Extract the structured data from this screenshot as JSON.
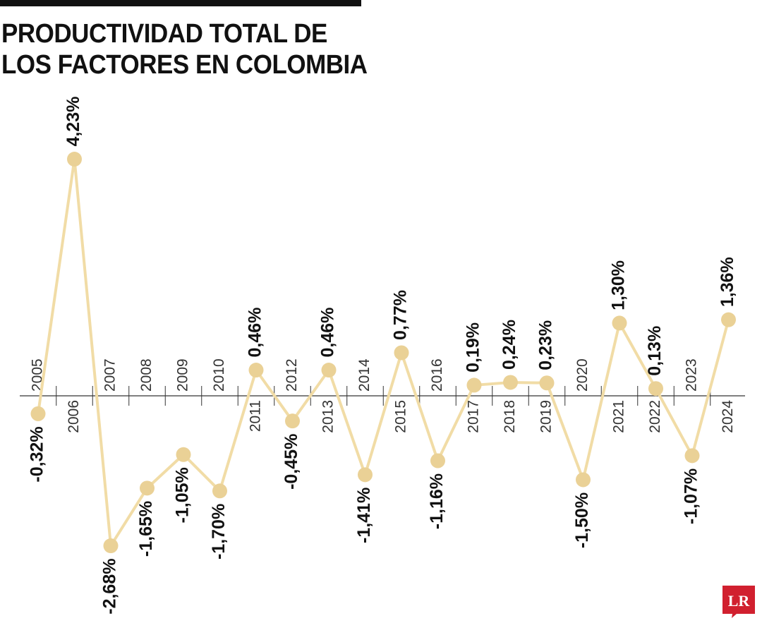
{
  "title_lines": [
    "PRODUCTIVIDAD TOTAL DE",
    "LOS FACTORES EN COLOMBIA"
  ],
  "logo": {
    "text": "LR",
    "color": "#d1202f"
  },
  "colors": {
    "line": "#f1dca6",
    "marker": "#ead196",
    "axis": "#333333",
    "text": "#111111"
  },
  "chart_data": {
    "type": "line",
    "title": "PRODUCTIVIDAD TOTAL DE LOS FACTORES EN COLOMBIA",
    "categories": [
      "2005",
      "2006",
      "2007",
      "2008",
      "2009",
      "2010",
      "2011",
      "2012",
      "2013",
      "2014",
      "2015",
      "2016",
      "2017",
      "2018",
      "2019",
      "2020",
      "2021",
      "2022",
      "2023",
      "2024"
    ],
    "series": [
      {
        "values": [
          -0.32,
          4.23,
          -2.68,
          -1.65,
          -1.05,
          -1.7,
          0.46,
          -0.45,
          0.46,
          -1.41,
          0.77,
          -1.16,
          0.19,
          0.24,
          0.23,
          -1.5,
          1.3,
          0.13,
          -1.07,
          1.36
        ]
      }
    ],
    "labels": [
      "-0,32%",
      "4,23%",
      "-2,68%",
      "-1,65%",
      "-1,05%",
      "-1,70%",
      "0,46%",
      "-0,45%",
      "0,46%",
      "-1,41%",
      "0,77%",
      "-1,16%",
      "0,19%",
      "0,24%",
      "0,23%",
      "-1,50%",
      "1,30%",
      "0,13%",
      "-1,07%",
      "1,36%"
    ],
    "xlabel": "",
    "ylabel": "",
    "grid": false,
    "legend": "none"
  }
}
